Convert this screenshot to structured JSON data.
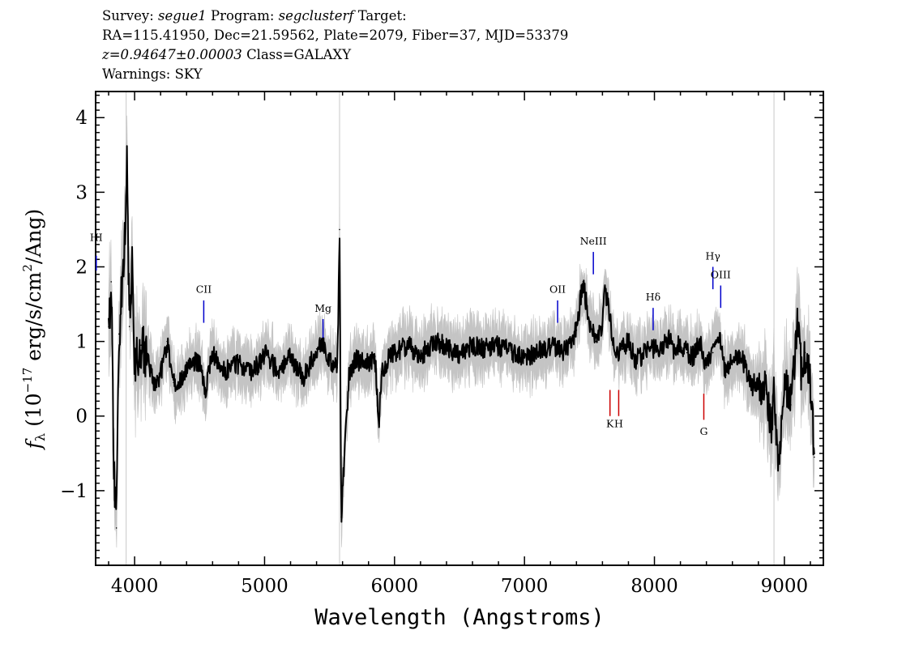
{
  "header": {
    "survey_label": "Survey:",
    "survey": "segue1",
    "program_label": "Program:",
    "program": "segclusterf",
    "target_label": "Target:",
    "coords": "RA=115.41950, Dec=21.59562, Plate=2079, Fiber=37, MJD=53379",
    "redshift": "z=0.94647±0.00003",
    "class": "Class=GALAXY",
    "warnings": "Warnings: SKY"
  },
  "chart_data": {
    "type": "line",
    "xlabel": "Wavelength (Angstroms)",
    "ylabel_parts": [
      "f",
      "λ",
      " (10",
      "−17",
      " erg/s/cm",
      "2",
      "/Ang)"
    ],
    "xlim": [
      3700,
      9300
    ],
    "ylim": [
      -2.0,
      4.35
    ],
    "x_ticks": [
      4000,
      5000,
      6000,
      7000,
      8000,
      9000
    ],
    "x_tick_labels": [
      "4000",
      "5000",
      "6000",
      "7000",
      "8000",
      "9000"
    ],
    "y_ticks": [
      -1,
      0,
      1,
      2,
      3,
      4
    ],
    "y_tick_labels": [
      "−1",
      "0",
      "1",
      "2",
      "3",
      "4"
    ],
    "colors": {
      "flux": "#000000",
      "error": "#c0c0c0",
      "emission": "#0000cc",
      "absorption": "#cc0000"
    },
    "sky_lines": [
      3935,
      5577,
      8920
    ],
    "series": [
      {
        "role": "flux",
        "x": [
          3800,
          3820,
          3840,
          3860,
          3880,
          3900,
          3920,
          3940,
          3960,
          3980,
          4000,
          4050,
          4100,
          4150,
          4200,
          4250,
          4300,
          4350,
          4400,
          4450,
          4500,
          4550,
          4600,
          4650,
          4700,
          4800,
          4900,
          5000,
          5100,
          5200,
          5300,
          5400,
          5450,
          5500,
          5560,
          5577,
          5590,
          5650,
          5700,
          5800,
          5850,
          5880,
          5900,
          5950,
          6000,
          6100,
          6200,
          6300,
          6400,
          6500,
          6600,
          6700,
          6800,
          6900,
          7000,
          7100,
          7200,
          7300,
          7400,
          7450,
          7500,
          7550,
          7600,
          7620,
          7650,
          7700,
          7750,
          7800,
          7850,
          7900,
          7950,
          8000,
          8050,
          8100,
          8150,
          8200,
          8250,
          8300,
          8350,
          8400,
          8450,
          8500,
          8550,
          8600,
          8650,
          8700,
          8750,
          8800,
          8850,
          8900,
          8920,
          8950,
          9000,
          9050,
          9100,
          9130,
          9160,
          9200,
          9230
        ],
        "y": [
          1.2,
          1.8,
          -0.6,
          -1.5,
          1.1,
          1.6,
          2.1,
          3.4,
          1.2,
          2.15,
          0.6,
          0.95,
          0.75,
          0.4,
          0.55,
          1.0,
          0.45,
          0.5,
          0.6,
          0.75,
          0.7,
          0.35,
          0.85,
          0.65,
          0.6,
          0.7,
          0.55,
          0.85,
          0.6,
          0.8,
          0.5,
          0.9,
          0.95,
          0.75,
          0.65,
          2.5,
          -1.35,
          0.55,
          0.75,
          0.7,
          0.8,
          -0.15,
          0.6,
          0.75,
          0.85,
          0.95,
          0.8,
          1.0,
          0.95,
          0.8,
          0.95,
          0.9,
          0.95,
          0.85,
          0.8,
          0.85,
          0.95,
          0.85,
          1.15,
          1.8,
          1.25,
          1.0,
          1.2,
          1.7,
          1.4,
          0.85,
          0.9,
          1.0,
          0.75,
          0.8,
          0.9,
          0.9,
          0.9,
          1.05,
          0.9,
          0.95,
          0.85,
          0.8,
          1.0,
          0.65,
          0.85,
          1.05,
          0.55,
          0.75,
          0.85,
          0.65,
          0.4,
          0.5,
          0.35,
          -0.2,
          0.3,
          -0.7,
          0.4,
          0.15,
          1.25,
          0.6,
          0.85,
          0.4,
          -0.55
        ]
      }
    ],
    "emission_lines": [
      {
        "label": "HI",
        "x": 3705,
        "label_y": 2.35,
        "line_y": [
          1.95,
          2.15
        ]
      },
      {
        "label": "CII",
        "x": 4532,
        "label_y": 1.65,
        "line_y": [
          1.25,
          1.55
        ]
      },
      {
        "label": "Mg",
        "x": 5450,
        "label_y": 1.4,
        "line_y": [
          1.05,
          1.3
        ]
      },
      {
        "label": "OII",
        "x": 7255,
        "label_y": 1.65,
        "line_y": [
          1.25,
          1.55
        ]
      },
      {
        "label": "NeIII",
        "x": 7530,
        "label_y": 2.3,
        "line_y": [
          1.9,
          2.2
        ]
      },
      {
        "label": "Hδ",
        "x": 7990,
        "label_y": 1.55,
        "line_y": [
          1.15,
          1.45
        ]
      },
      {
        "label": "Hγ",
        "x": 8450,
        "label_y": 2.1,
        "line_y": [
          1.7,
          2.0
        ]
      },
      {
        "label": "OIII",
        "x": 8510,
        "label_y": 1.85,
        "line_y": [
          1.45,
          1.75
        ]
      }
    ],
    "absorption_lines": [
      {
        "label": "K",
        "x": 7658,
        "label_y": -0.15,
        "line_y": [
          0.0,
          0.35
        ]
      },
      {
        "label": "H",
        "x": 7725,
        "label_y": -0.15,
        "line_y": [
          0.0,
          0.35
        ]
      },
      {
        "label": "G",
        "x": 8380,
        "label_y": -0.25,
        "line_y": [
          -0.05,
          0.3
        ]
      }
    ]
  }
}
